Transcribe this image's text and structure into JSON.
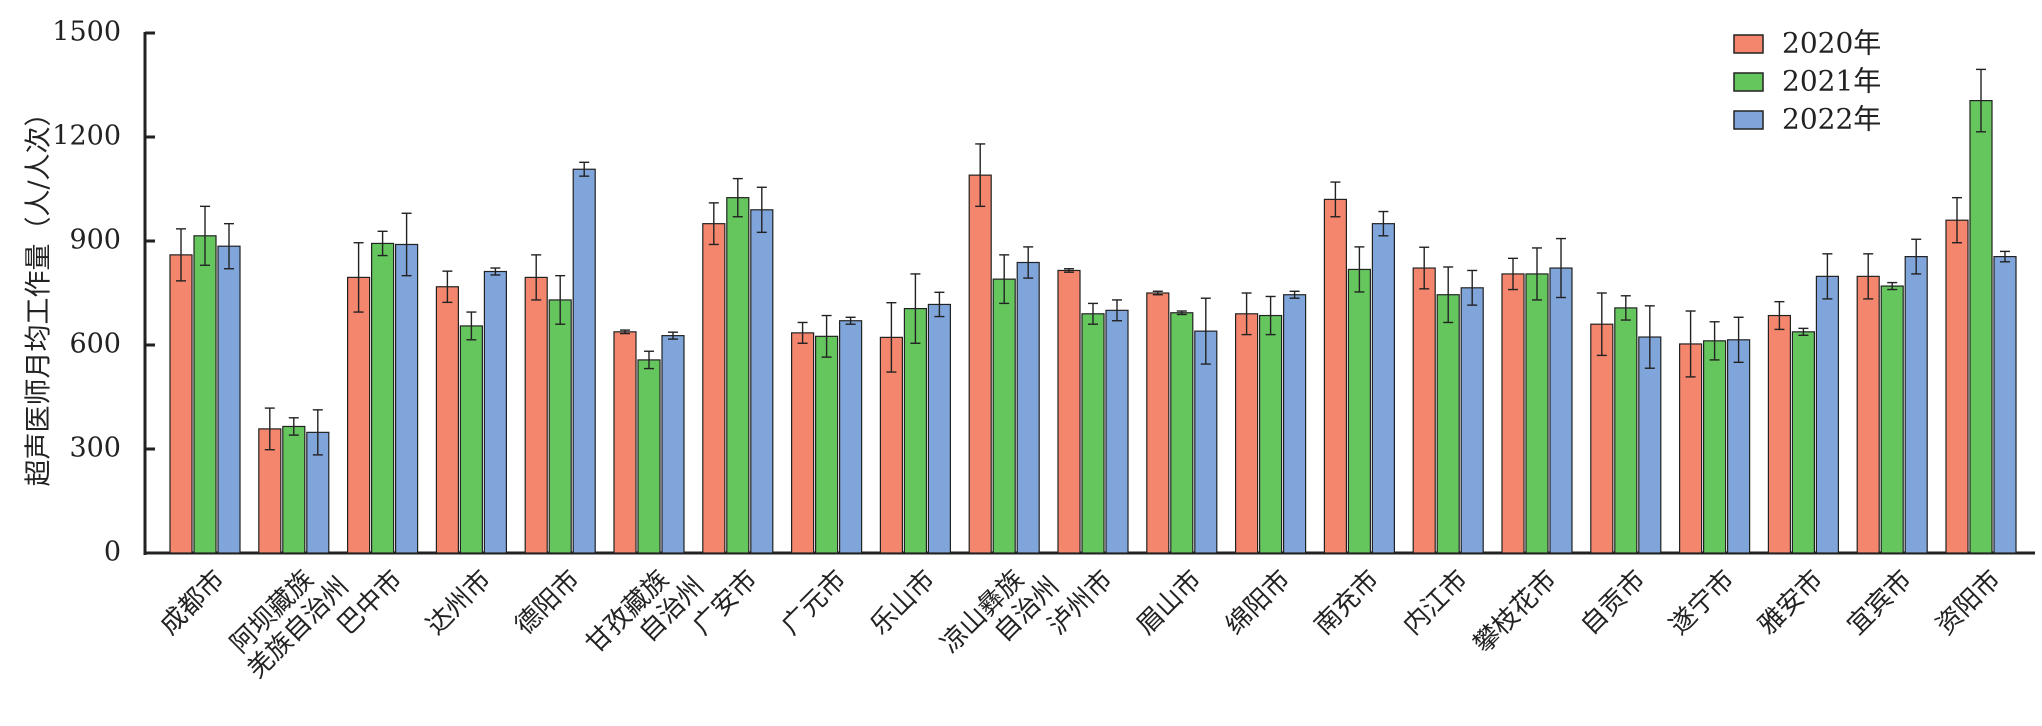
{
  "chart_data": {
    "type": "bar",
    "title": "",
    "xlabel": "",
    "ylabel": "超声医师月均工作量（人/人次）",
    "ylim": [
      0,
      1500
    ],
    "yticks": [
      0,
      300,
      600,
      900,
      1200,
      1500
    ],
    "legend_position": "top-right",
    "categories": [
      [
        "成都市"
      ],
      [
        "阿坝藏族",
        "羌族自治州"
      ],
      [
        "巴中市"
      ],
      [
        "达州市"
      ],
      [
        "德阳市"
      ],
      [
        "甘孜藏族",
        "自治州"
      ],
      [
        "广安市"
      ],
      [
        "广元市"
      ],
      [
        "乐山市"
      ],
      [
        "凉山彝族",
        "自治州"
      ],
      [
        "泸州市"
      ],
      [
        "眉山市"
      ],
      [
        "绵阳市"
      ],
      [
        "南充市"
      ],
      [
        "内江市"
      ],
      [
        "攀枝花市"
      ],
      [
        "自贡市"
      ],
      [
        "遂宁市"
      ],
      [
        "雅安市"
      ],
      [
        "宜宾市"
      ],
      [
        "资阳市"
      ]
    ],
    "series": [
      {
        "name": "2020年",
        "color": "#f4866d",
        "values": [
          860,
          358,
          795,
          768,
          795,
          638,
          950,
          635,
          622,
          1090,
          815,
          750,
          690,
          1020,
          822,
          805,
          660,
          603,
          685,
          798,
          960
        ],
        "errors": [
          75,
          60,
          100,
          45,
          65,
          5,
          60,
          30,
          100,
          90,
          5,
          5,
          60,
          50,
          60,
          45,
          90,
          95,
          40,
          65,
          65
        ]
      },
      {
        "name": "2021年",
        "color": "#65c65e",
        "values": [
          915,
          365,
          893,
          655,
          730,
          557,
          1025,
          625,
          705,
          790,
          690,
          693,
          685,
          818,
          745,
          805,
          707,
          612,
          638,
          770,
          1305
        ],
        "errors": [
          85,
          25,
          35,
          40,
          70,
          25,
          55,
          60,
          100,
          70,
          30,
          5,
          55,
          65,
          80,
          75,
          35,
          55,
          10,
          10,
          90
        ]
      },
      {
        "name": "2022年",
        "color": "#7fa5da",
        "values": [
          885,
          348,
          890,
          812,
          1107,
          627,
          990,
          670,
          717,
          838,
          700,
          640,
          745,
          950,
          765,
          822,
          623,
          615,
          798,
          855,
          855
        ],
        "errors": [
          65,
          65,
          90,
          10,
          20,
          10,
          65,
          10,
          35,
          45,
          30,
          95,
          10,
          35,
          50,
          85,
          90,
          65,
          65,
          50,
          15
        ]
      }
    ]
  }
}
